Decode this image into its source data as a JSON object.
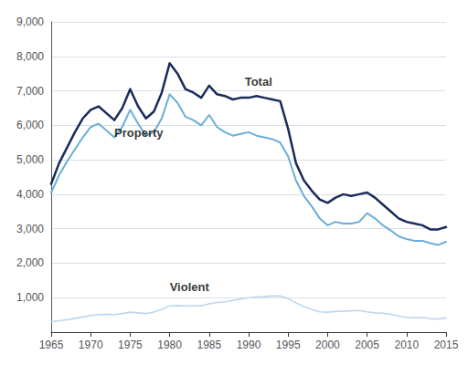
{
  "chart_data": {
    "type": "line",
    "x": [
      1965,
      1966,
      1967,
      1968,
      1969,
      1970,
      1971,
      1972,
      1973,
      1974,
      1975,
      1976,
      1977,
      1978,
      1979,
      1980,
      1981,
      1982,
      1983,
      1984,
      1985,
      1986,
      1987,
      1988,
      1989,
      1990,
      1991,
      1992,
      1993,
      1994,
      1995,
      1996,
      1997,
      1998,
      1999,
      2000,
      2001,
      2002,
      2003,
      2004,
      2005,
      2006,
      2007,
      2008,
      2009,
      2010,
      2011,
      2012,
      2013,
      2014,
      2015
    ],
    "series": [
      {
        "name": "Property",
        "color": "#6baed6",
        "values": [
          4050,
          4550,
          4950,
          5300,
          5650,
          5950,
          6050,
          5850,
          5650,
          5950,
          6450,
          6050,
          5700,
          5800,
          6200,
          6900,
          6650,
          6250,
          6150,
          6000,
          6300,
          5950,
          5800,
          5700,
          5750,
          5800,
          5700,
          5650,
          5600,
          5500,
          5100,
          4400,
          3950,
          3650,
          3300,
          3100,
          3200,
          3150,
          3150,
          3200,
          3450,
          3300,
          3100,
          2950,
          2780,
          2700,
          2650,
          2650,
          2580,
          2530,
          2620
        ]
      },
      {
        "name": "Total",
        "color": "#1a2b5c",
        "values": [
          4300,
          4900,
          5350,
          5800,
          6200,
          6450,
          6550,
          6350,
          6150,
          6500,
          7050,
          6550,
          6200,
          6400,
          6950,
          7800,
          7500,
          7050,
          6950,
          6800,
          7150,
          6900,
          6850,
          6750,
          6800,
          6800,
          6850,
          6800,
          6750,
          6700,
          5900,
          4900,
          4400,
          4100,
          3850,
          3750,
          3900,
          4000,
          3950,
          4000,
          4050,
          3900,
          3700,
          3500,
          3300,
          3200,
          3150,
          3100,
          2980,
          2980,
          3050
        ]
      },
      {
        "name": "Violent",
        "color": "#bdd7ee",
        "values": [
          300,
          330,
          360,
          400,
          440,
          480,
          510,
          520,
          510,
          540,
          580,
          560,
          540,
          580,
          660,
          760,
          770,
          760,
          760,
          770,
          820,
          860,
          880,
          920,
          960,
          1000,
          1020,
          1030,
          1050,
          1050,
          970,
          850,
          740,
          660,
          590,
          580,
          600,
          610,
          620,
          630,
          590,
          560,
          550,
          520,
          470,
          430,
          420,
          430,
          390,
          380,
          420
        ]
      }
    ],
    "annotations": [
      {
        "text": "Total",
        "x": 1989.5,
        "y": 7100
      },
      {
        "text": "Property",
        "x": 1973,
        "y": 5600
      },
      {
        "text": "Violent",
        "x": 1982.5,
        "y": 1130
      }
    ],
    "xlim": [
      1965,
      2015
    ],
    "xticks": [
      1965,
      1970,
      1975,
      1980,
      1985,
      1990,
      1995,
      2000,
      2005,
      2010,
      2015
    ],
    "ylim": [
      0,
      9000
    ],
    "yticks": [
      {
        "value": 1000,
        "label": "1,000"
      },
      {
        "value": 2000,
        "label": "2,000"
      },
      {
        "value": 3000,
        "label": "3,000"
      },
      {
        "value": 4000,
        "label": "4,000"
      },
      {
        "value": 5000,
        "label": "5,000"
      },
      {
        "value": 6000,
        "label": "6,000"
      },
      {
        "value": 7000,
        "label": "7,000"
      },
      {
        "value": 8000,
        "label": "8,000"
      },
      {
        "value": 9000,
        "label": "9,000"
      }
    ],
    "grid": true
  }
}
